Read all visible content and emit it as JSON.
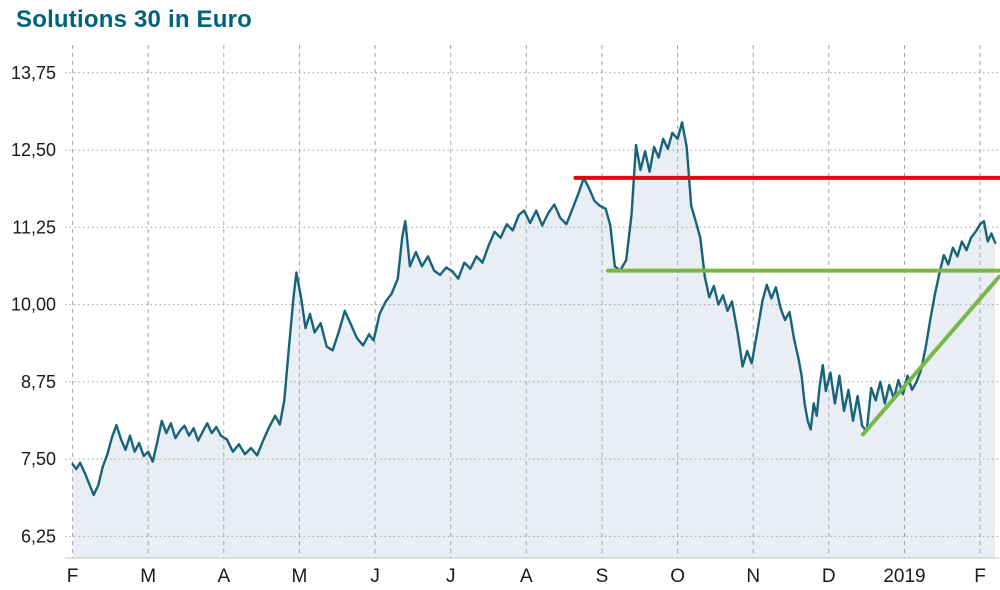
{
  "chart_data": {
    "type": "area",
    "title": "Solutions 30 in Euro",
    "x_unit": "months, Feb 2018 (0) to Feb 2019 (12)",
    "xlim": [
      -0.1,
      12.25
    ],
    "ylim": [
      5.9,
      14.2
    ],
    "grid": {
      "vertical": "dashed",
      "horizontal": "dotted"
    },
    "x_ticks": [
      {
        "x": 0,
        "label": "F"
      },
      {
        "x": 1,
        "label": "M"
      },
      {
        "x": 2,
        "label": "A"
      },
      {
        "x": 3,
        "label": "M"
      },
      {
        "x": 4,
        "label": "J"
      },
      {
        "x": 5,
        "label": "J"
      },
      {
        "x": 6,
        "label": "A"
      },
      {
        "x": 7,
        "label": "S"
      },
      {
        "x": 8,
        "label": "O"
      },
      {
        "x": 9,
        "label": "N"
      },
      {
        "x": 10,
        "label": "D"
      },
      {
        "x": 11,
        "label": "2019"
      },
      {
        "x": 12,
        "label": "F"
      }
    ],
    "y_ticks": [
      {
        "value": 13.75,
        "label": "13,75"
      },
      {
        "value": 12.5,
        "label": "12,50"
      },
      {
        "value": 11.25,
        "label": "11,25"
      },
      {
        "value": 10.0,
        "label": "10,00"
      },
      {
        "value": 8.75,
        "label": "8,75"
      },
      {
        "value": 7.5,
        "label": "7,50"
      },
      {
        "value": 6.25,
        "label": "6,25"
      }
    ],
    "colors": {
      "line": "#16637a",
      "fill": "#e9edf4",
      "resistance": "#e30613",
      "support": "#7ab648",
      "grid": "#a3a3a3",
      "axis": "#c8c8c8",
      "title": "#00637e",
      "text": "#1a1a1a"
    },
    "series": {
      "name": "Solutions 30",
      "color": "#16637a",
      "fill": "#e9edf4",
      "points": [
        [
          0.0,
          7.42
        ],
        [
          0.05,
          7.34
        ],
        [
          0.1,
          7.44
        ],
        [
          0.16,
          7.28
        ],
        [
          0.22,
          7.1
        ],
        [
          0.28,
          6.92
        ],
        [
          0.34,
          7.08
        ],
        [
          0.4,
          7.38
        ],
        [
          0.46,
          7.58
        ],
        [
          0.52,
          7.85
        ],
        [
          0.58,
          8.05
        ],
        [
          0.64,
          7.82
        ],
        [
          0.7,
          7.65
        ],
        [
          0.76,
          7.88
        ],
        [
          0.82,
          7.62
        ],
        [
          0.88,
          7.76
        ],
        [
          0.94,
          7.55
        ],
        [
          1.0,
          7.62
        ],
        [
          1.06,
          7.46
        ],
        [
          1.12,
          7.78
        ],
        [
          1.18,
          8.12
        ],
        [
          1.24,
          7.92
        ],
        [
          1.3,
          8.08
        ],
        [
          1.36,
          7.84
        ],
        [
          1.42,
          7.96
        ],
        [
          1.48,
          8.04
        ],
        [
          1.54,
          7.88
        ],
        [
          1.6,
          8.0
        ],
        [
          1.66,
          7.8
        ],
        [
          1.72,
          7.94
        ],
        [
          1.78,
          8.08
        ],
        [
          1.84,
          7.92
        ],
        [
          1.9,
          8.02
        ],
        [
          1.96,
          7.88
        ],
        [
          2.04,
          7.82
        ],
        [
          2.12,
          7.62
        ],
        [
          2.2,
          7.74
        ],
        [
          2.28,
          7.58
        ],
        [
          2.36,
          7.68
        ],
        [
          2.44,
          7.56
        ],
        [
          2.52,
          7.8
        ],
        [
          2.6,
          8.02
        ],
        [
          2.68,
          8.2
        ],
        [
          2.74,
          8.06
        ],
        [
          2.8,
          8.45
        ],
        [
          2.86,
          9.3
        ],
        [
          2.92,
          10.1
        ],
        [
          2.96,
          10.52
        ],
        [
          3.02,
          10.12
        ],
        [
          3.08,
          9.62
        ],
        [
          3.14,
          9.85
        ],
        [
          3.2,
          9.55
        ],
        [
          3.28,
          9.7
        ],
        [
          3.36,
          9.32
        ],
        [
          3.44,
          9.26
        ],
        [
          3.52,
          9.56
        ],
        [
          3.6,
          9.9
        ],
        [
          3.68,
          9.68
        ],
        [
          3.76,
          9.46
        ],
        [
          3.84,
          9.34
        ],
        [
          3.92,
          9.52
        ],
        [
          3.98,
          9.42
        ],
        [
          4.06,
          9.85
        ],
        [
          4.14,
          10.05
        ],
        [
          4.22,
          10.18
        ],
        [
          4.3,
          10.42
        ],
        [
          4.36,
          11.1
        ],
        [
          4.4,
          11.35
        ],
        [
          4.46,
          10.62
        ],
        [
          4.54,
          10.85
        ],
        [
          4.62,
          10.62
        ],
        [
          4.7,
          10.78
        ],
        [
          4.78,
          10.55
        ],
        [
          4.86,
          10.48
        ],
        [
          4.94,
          10.6
        ],
        [
          5.02,
          10.54
        ],
        [
          5.1,
          10.42
        ],
        [
          5.18,
          10.68
        ],
        [
          5.26,
          10.58
        ],
        [
          5.34,
          10.78
        ],
        [
          5.42,
          10.68
        ],
        [
          5.5,
          10.95
        ],
        [
          5.58,
          11.18
        ],
        [
          5.66,
          11.08
        ],
        [
          5.74,
          11.3
        ],
        [
          5.82,
          11.2
        ],
        [
          5.9,
          11.45
        ],
        [
          5.97,
          11.52
        ],
        [
          6.05,
          11.32
        ],
        [
          6.13,
          11.52
        ],
        [
          6.21,
          11.28
        ],
        [
          6.29,
          11.48
        ],
        [
          6.37,
          11.62
        ],
        [
          6.45,
          11.4
        ],
        [
          6.53,
          11.3
        ],
        [
          6.61,
          11.55
        ],
        [
          6.69,
          11.8
        ],
        [
          6.76,
          12.05
        ],
        [
          6.83,
          11.88
        ],
        [
          6.9,
          11.68
        ],
        [
          6.97,
          11.6
        ],
        [
          7.05,
          11.55
        ],
        [
          7.11,
          11.28
        ],
        [
          7.17,
          10.62
        ],
        [
          7.24,
          10.55
        ],
        [
          7.32,
          10.72
        ],
        [
          7.39,
          11.45
        ],
        [
          7.45,
          12.58
        ],
        [
          7.51,
          12.18
        ],
        [
          7.57,
          12.48
        ],
        [
          7.63,
          12.15
        ],
        [
          7.69,
          12.55
        ],
        [
          7.75,
          12.38
        ],
        [
          7.81,
          12.68
        ],
        [
          7.87,
          12.52
        ],
        [
          7.93,
          12.78
        ],
        [
          8.0,
          12.68
        ],
        [
          8.06,
          12.95
        ],
        [
          8.12,
          12.55
        ],
        [
          8.18,
          11.6
        ],
        [
          8.24,
          11.35
        ],
        [
          8.3,
          11.08
        ],
        [
          8.36,
          10.45
        ],
        [
          8.42,
          10.12
        ],
        [
          8.48,
          10.3
        ],
        [
          8.54,
          10.0
        ],
        [
          8.6,
          10.15
        ],
        [
          8.66,
          9.9
        ],
        [
          8.72,
          10.05
        ],
        [
          8.8,
          9.5
        ],
        [
          8.86,
          9.0
        ],
        [
          8.92,
          9.25
        ],
        [
          8.98,
          9.05
        ],
        [
          9.06,
          9.6
        ],
        [
          9.12,
          10.05
        ],
        [
          9.18,
          10.32
        ],
        [
          9.24,
          10.1
        ],
        [
          9.3,
          10.28
        ],
        [
          9.36,
          9.95
        ],
        [
          9.42,
          9.75
        ],
        [
          9.48,
          9.88
        ],
        [
          9.54,
          9.45
        ],
        [
          9.6,
          9.12
        ],
        [
          9.64,
          8.85
        ],
        [
          9.68,
          8.4
        ],
        [
          9.72,
          8.12
        ],
        [
          9.76,
          7.98
        ],
        [
          9.8,
          8.4
        ],
        [
          9.84,
          8.2
        ],
        [
          9.88,
          8.7
        ],
        [
          9.92,
          9.02
        ],
        [
          9.96,
          8.6
        ],
        [
          10.02,
          8.9
        ],
        [
          10.08,
          8.4
        ],
        [
          10.14,
          8.85
        ],
        [
          10.2,
          8.28
        ],
        [
          10.26,
          8.62
        ],
        [
          10.32,
          8.12
        ],
        [
          10.38,
          8.52
        ],
        [
          10.44,
          8.04
        ],
        [
          10.5,
          7.95
        ],
        [
          10.56,
          8.65
        ],
        [
          10.62,
          8.45
        ],
        [
          10.68,
          8.75
        ],
        [
          10.74,
          8.4
        ],
        [
          10.8,
          8.7
        ],
        [
          10.86,
          8.48
        ],
        [
          10.92,
          8.78
        ],
        [
          10.98,
          8.55
        ],
        [
          11.04,
          8.85
        ],
        [
          11.1,
          8.62
        ],
        [
          11.16,
          8.75
        ],
        [
          11.22,
          8.95
        ],
        [
          11.28,
          9.3
        ],
        [
          11.34,
          9.75
        ],
        [
          11.4,
          10.15
        ],
        [
          11.46,
          10.5
        ],
        [
          11.52,
          10.8
        ],
        [
          11.58,
          10.65
        ],
        [
          11.64,
          10.92
        ],
        [
          11.7,
          10.78
        ],
        [
          11.76,
          11.02
        ],
        [
          11.82,
          10.88
        ],
        [
          11.88,
          11.08
        ],
        [
          11.94,
          11.18
        ],
        [
          12.0,
          11.3
        ],
        [
          12.05,
          11.35
        ],
        [
          12.1,
          11.02
        ],
        [
          12.15,
          11.15
        ],
        [
          12.2,
          11.0
        ]
      ]
    },
    "annotations": [
      {
        "type": "hline",
        "name": "resistance-line",
        "color": "#e30613",
        "value": 12.05,
        "x1": 6.65,
        "x2": 12.25
      },
      {
        "type": "hline",
        "name": "support-line",
        "color": "#7ab648",
        "value": 10.55,
        "x1": 7.08,
        "x2": 12.25
      },
      {
        "type": "segment",
        "name": "trend-line",
        "color": "#7ab648",
        "x1": 10.45,
        "y1": 7.9,
        "x2": 12.25,
        "y2": 10.45
      }
    ]
  }
}
